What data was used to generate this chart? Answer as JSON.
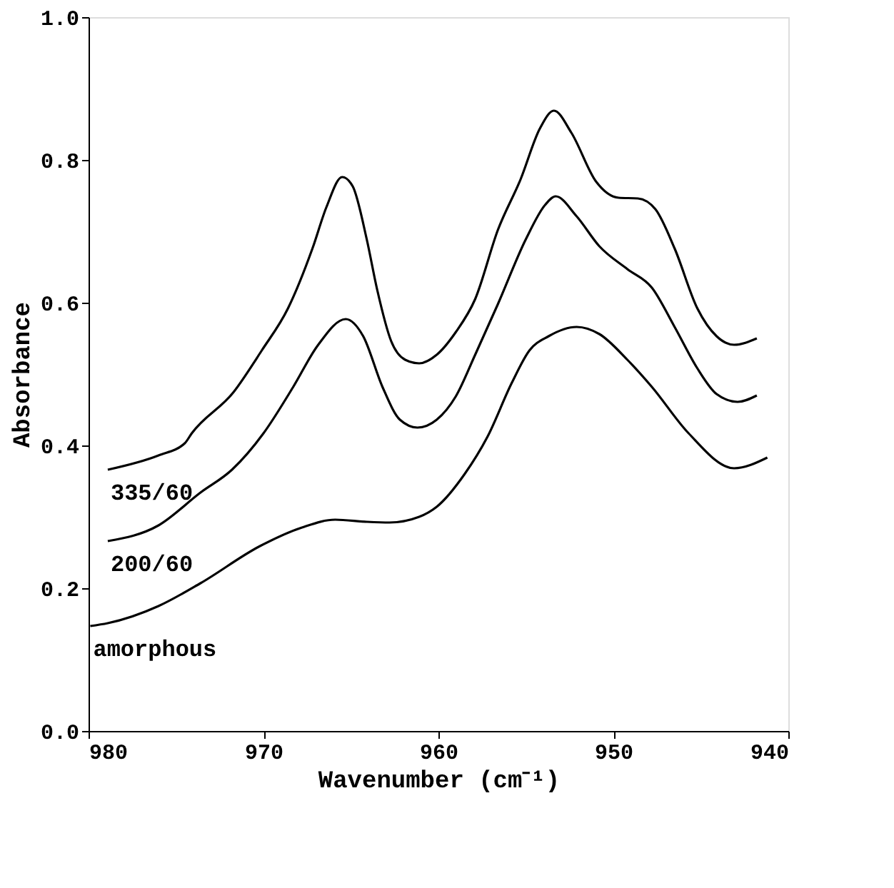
{
  "chart_data": {
    "type": "line",
    "xlabel": "Wavenumber (cm⁻¹)",
    "ylabel": "Absorbance",
    "xlim": [
      980,
      940
    ],
    "xticks": [
      980,
      970,
      960,
      950,
      940
    ],
    "ylim": [
      0,
      1
    ],
    "yticks": [
      {
        "value": 0,
        "label": "0.0"
      },
      {
        "value": 0.2,
        "label": "0.2"
      },
      {
        "value": 0.4,
        "label": "0.4"
      },
      {
        "value": 0.6,
        "label": "0.6"
      },
      {
        "value": 0.8,
        "label": "0.8"
      },
      {
        "value": 1,
        "label": "1.0"
      }
    ],
    "grid": false,
    "marker": "none",
    "line_style": "solid",
    "series": [
      {
        "name": "335/60",
        "color": "#000000",
        "x": [
          978.9,
          976.0,
          974.5,
          974.1,
          971.7,
          970.1,
          968.6,
          967.2,
          966.4,
          965.5,
          964.9,
          964.1,
          963.5,
          962.7,
          961.9,
          961.1,
          960.1,
          959.0,
          957.9,
          956.6,
          955.3,
          954.2,
          953.4,
          952.4,
          951.0,
          949.7,
          948.6,
          947.6,
          946.5,
          945.2,
          944.1,
          943.1,
          941.8
        ],
        "values": [
          0.366,
          0.386,
          0.403,
          0.417,
          0.475,
          0.533,
          0.592,
          0.676,
          0.734,
          0.776,
          0.763,
          0.689,
          0.618,
          0.546,
          0.52,
          0.515,
          0.527,
          0.559,
          0.605,
          0.702,
          0.773,
          0.844,
          0.869,
          0.838,
          0.77,
          0.747,
          0.746,
          0.731,
          0.676,
          0.592,
          0.553,
          0.541,
          0.55
        ]
      },
      {
        "name": "200/60",
        "color": "#000000",
        "x": [
          978.9,
          976.0,
          973.6,
          971.8,
          970.0,
          968.3,
          966.9,
          965.3,
          964.3,
          963.2,
          962.2,
          961.2,
          960.1,
          959.0,
          957.9,
          956.6,
          955.0,
          953.9,
          953.3,
          952.1,
          950.8,
          949.2,
          947.8,
          946.5,
          945.2,
          944.1,
          942.9,
          941.8
        ],
        "values": [
          0.266,
          0.288,
          0.334,
          0.366,
          0.417,
          0.482,
          0.54,
          0.577,
          0.553,
          0.482,
          0.436,
          0.425,
          0.436,
          0.469,
          0.527,
          0.598,
          0.689,
          0.737,
          0.749,
          0.721,
          0.679,
          0.647,
          0.621,
          0.566,
          0.508,
          0.472,
          0.461,
          0.47
        ]
      },
      {
        "name": "amorphous",
        "color": "#000000",
        "x": [
          979.9,
          978.9,
          976.0,
          973.6,
          970.2,
          967.8,
          965.9,
          964.1,
          962.8,
          961.1,
          960.1,
          958.5,
          957.2,
          955.8,
          954.8,
          953.7,
          952.1,
          950.8,
          949.2,
          947.8,
          945.7,
          943.1,
          941.2
        ],
        "values": [
          0.147,
          0.151,
          0.175,
          0.207,
          0.259,
          0.285,
          0.296,
          0.293,
          0.292,
          0.3,
          0.314,
          0.36,
          0.412,
          0.488,
          0.533,
          0.553,
          0.566,
          0.556,
          0.52,
          0.482,
          0.417,
          0.368,
          0.383
        ]
      }
    ]
  }
}
